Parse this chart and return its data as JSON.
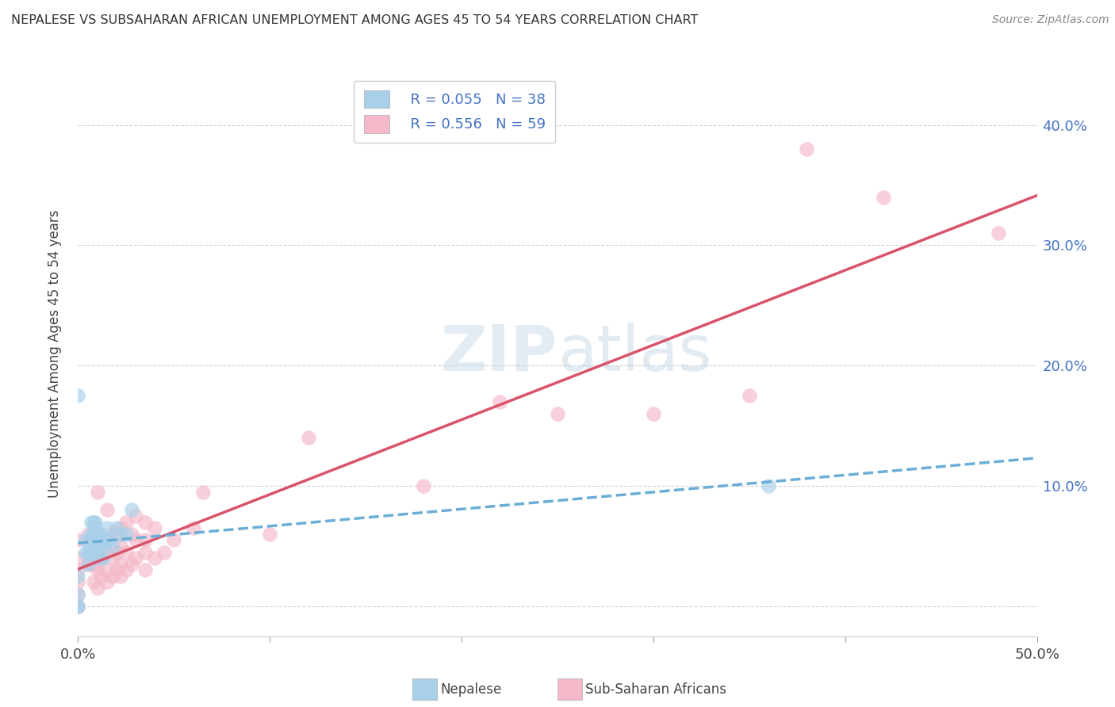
{
  "title": "NEPALESE VS SUBSAHARAN AFRICAN UNEMPLOYMENT AMONG AGES 45 TO 54 YEARS CORRELATION CHART",
  "source": "Source: ZipAtlas.com",
  "ylabel": "Unemployment Among Ages 45 to 54 years",
  "xlim": [
    0.0,
    0.5
  ],
  "ylim": [
    -0.025,
    0.445
  ],
  "ytick_vals": [
    0.0,
    0.1,
    0.2,
    0.3,
    0.4
  ],
  "ytick_labels": [
    "",
    "10.0%",
    "20.0%",
    "30.0%",
    "40.0%"
  ],
  "xtick_vals": [
    0.0,
    0.1,
    0.2,
    0.3,
    0.4,
    0.5
  ],
  "xtick_edge_labels": [
    "0.0%",
    "",
    "",
    "",
    "",
    "50.0%"
  ],
  "legend_r1": "R = 0.055",
  "legend_n1": "N = 38",
  "legend_r2": "R = 0.556",
  "legend_n2": "N = 59",
  "color_blue": "#a8d0ea",
  "color_pink": "#f4b8c8",
  "color_blue_line": "#6aaed6",
  "color_pink_line": "#d9536a",
  "watermark_zip": "ZIP",
  "watermark_atlas": "atlas",
  "nepalese_x": [
    0.0,
    0.0,
    0.0,
    0.0,
    0.0,
    0.004,
    0.004,
    0.005,
    0.005,
    0.006,
    0.006,
    0.007,
    0.007,
    0.008,
    0.008,
    0.009,
    0.009,
    0.009,
    0.009,
    0.009,
    0.01,
    0.01,
    0.01,
    0.011,
    0.011,
    0.012,
    0.012,
    0.013,
    0.013,
    0.015,
    0.015,
    0.016,
    0.018,
    0.02,
    0.022,
    0.025,
    0.028,
    0.36
  ],
  "nepalese_y": [
    0.175,
    0.025,
    0.01,
    0.0,
    0.0,
    0.055,
    0.045,
    0.045,
    0.035,
    0.055,
    0.045,
    0.07,
    0.06,
    0.07,
    0.06,
    0.07,
    0.065,
    0.06,
    0.055,
    0.045,
    0.06,
    0.055,
    0.05,
    0.05,
    0.04,
    0.06,
    0.055,
    0.05,
    0.04,
    0.065,
    0.055,
    0.055,
    0.05,
    0.065,
    0.06,
    0.06,
    0.08,
    0.1
  ],
  "subsaharan_x": [
    0.0,
    0.0,
    0.0,
    0.0,
    0.0,
    0.0,
    0.005,
    0.005,
    0.008,
    0.008,
    0.008,
    0.01,
    0.01,
    0.01,
    0.01,
    0.012,
    0.012,
    0.015,
    0.015,
    0.015,
    0.015,
    0.018,
    0.018,
    0.018,
    0.02,
    0.02,
    0.02,
    0.022,
    0.022,
    0.022,
    0.022,
    0.025,
    0.025,
    0.025,
    0.028,
    0.028,
    0.03,
    0.03,
    0.03,
    0.035,
    0.035,
    0.035,
    0.035,
    0.04,
    0.04,
    0.045,
    0.05,
    0.06,
    0.065,
    0.1,
    0.12,
    0.18,
    0.22,
    0.25,
    0.3,
    0.35,
    0.38,
    0.42,
    0.48
  ],
  "subsaharan_y": [
    0.0,
    0.01,
    0.02,
    0.03,
    0.04,
    0.055,
    0.035,
    0.06,
    0.02,
    0.035,
    0.055,
    0.015,
    0.03,
    0.045,
    0.095,
    0.025,
    0.04,
    0.02,
    0.03,
    0.045,
    0.08,
    0.025,
    0.04,
    0.06,
    0.03,
    0.045,
    0.06,
    0.025,
    0.035,
    0.05,
    0.065,
    0.03,
    0.045,
    0.07,
    0.035,
    0.06,
    0.04,
    0.055,
    0.075,
    0.03,
    0.045,
    0.055,
    0.07,
    0.04,
    0.065,
    0.045,
    0.055,
    0.065,
    0.095,
    0.06,
    0.14,
    0.1,
    0.17,
    0.16,
    0.16,
    0.175,
    0.38,
    0.34,
    0.31
  ]
}
